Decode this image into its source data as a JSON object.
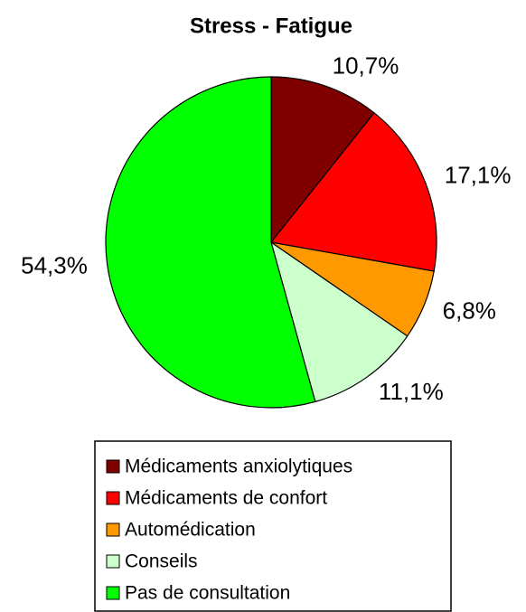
{
  "chart_data": {
    "type": "pie",
    "title": "Stress - Fatigue",
    "categories": [
      "Médicaments anxiolytiques",
      "Médicaments de confort",
      "Automédication",
      "Conseils",
      "Pas de consultation"
    ],
    "values": [
      10.7,
      17.1,
      6.8,
      11.1,
      54.3
    ],
    "value_labels": [
      "10,7%",
      "17,1%",
      "6,8%",
      "11,1%",
      "54,3%"
    ],
    "colors": [
      "#800000",
      "#ff0000",
      "#ff9900",
      "#ccffcc",
      "#00ff00"
    ]
  }
}
